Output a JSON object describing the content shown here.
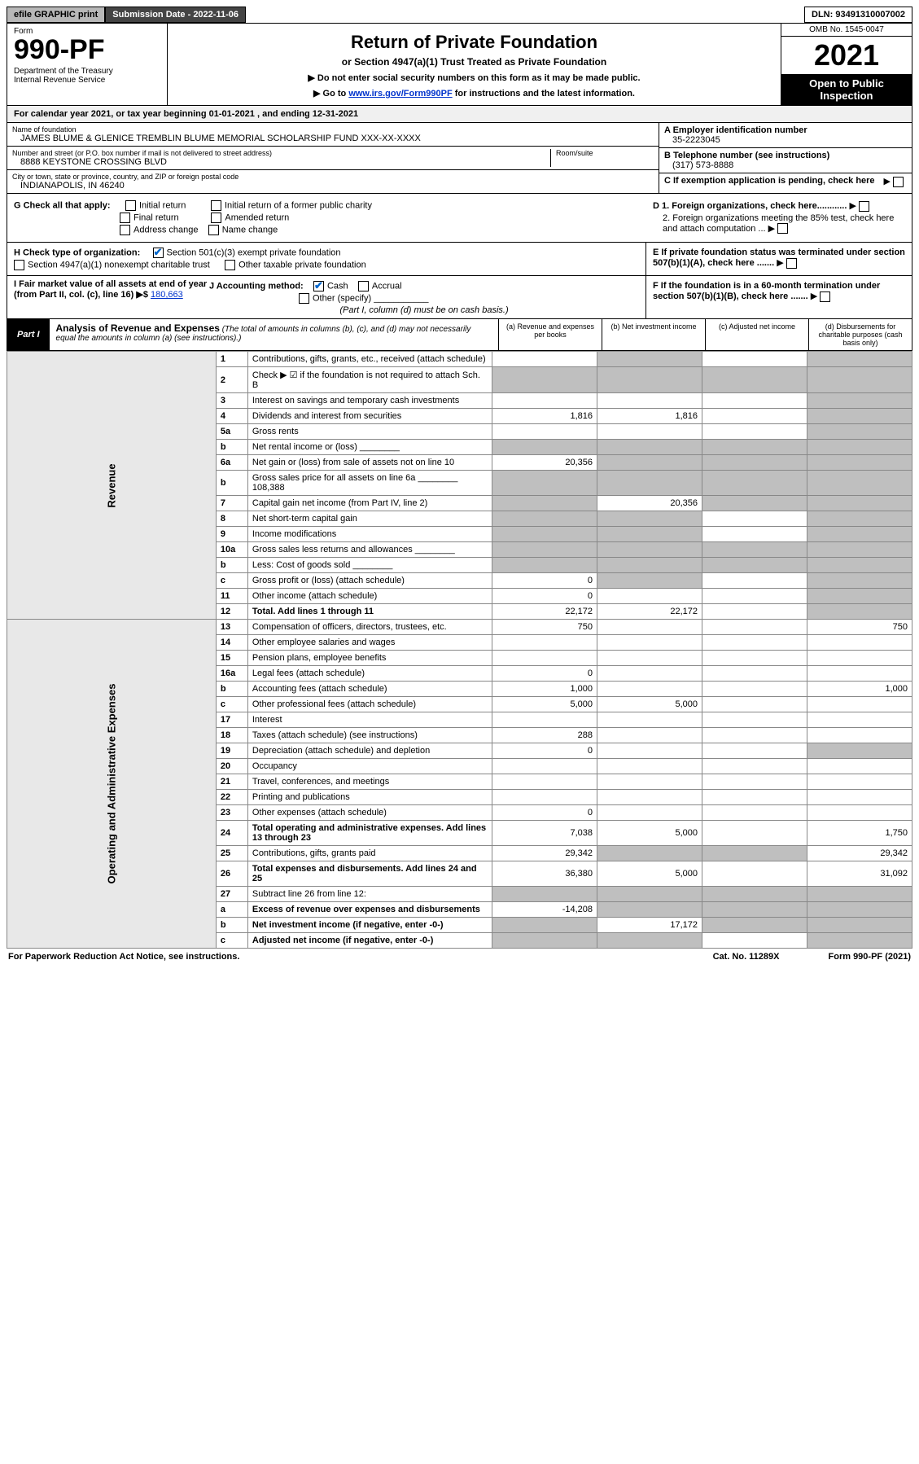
{
  "topbar": {
    "efile": "efile GRAPHIC print",
    "submission": "Submission Date - 2022-11-06",
    "dln": "DLN: 93491310007002"
  },
  "header": {
    "form_label": "Form",
    "form_num": "990-PF",
    "dept": "Department of the Treasury\nInternal Revenue Service",
    "title": "Return of Private Foundation",
    "subtitle": "or Section 4947(a)(1) Trust Treated as Private Foundation",
    "note1": "▶ Do not enter social security numbers on this form as it may be made public.",
    "note2_pre": "▶ Go to ",
    "note2_link": "www.irs.gov/Form990PF",
    "note2_post": " for instructions and the latest information.",
    "omb": "OMB No. 1545-0047",
    "year": "2021",
    "open": "Open to Public Inspection"
  },
  "cal_year": "For calendar year 2021, or tax year beginning 01-01-2021            , and ending 12-31-2021",
  "info": {
    "name_label": "Name of foundation",
    "name": "JAMES BLUME & GLENICE TREMBLIN BLUME MEMORIAL SCHOLARSHIP FUND XXX-XX-XXXX",
    "addr_label": "Number and street (or P.O. box number if mail is not delivered to street address)",
    "addr": "8888 KEYSTONE CROSSING BLVD",
    "room_label": "Room/suite",
    "city_label": "City or town, state or province, country, and ZIP or foreign postal code",
    "city": "INDIANAPOLIS, IN  46240",
    "a_label": "A Employer identification number",
    "a_val": "35-2223045",
    "b_label": "B Telephone number (see instructions)",
    "b_val": "(317) 573-8888",
    "c_label": "C If exemption application is pending, check here",
    "d1": "D 1. Foreign organizations, check here............",
    "d2": "2. Foreign organizations meeting the 85% test, check here and attach computation ...",
    "e": "E  If private foundation status was terminated under section 507(b)(1)(A), check here .......",
    "f": "F  If the foundation is in a 60-month termination under section 507(b)(1)(B), check here .......",
    "g_label": "G Check all that apply:",
    "g_initial": "Initial return",
    "g_initial_former": "Initial return of a former public charity",
    "g_final": "Final return",
    "g_amended": "Amended return",
    "g_addr": "Address change",
    "g_name": "Name change",
    "h_label": "H Check type of organization:",
    "h_501": "Section 501(c)(3) exempt private foundation",
    "h_4947": "Section 4947(a)(1) nonexempt charitable trust",
    "h_other": "Other taxable private foundation",
    "i_label": "I Fair market value of all assets at end of year (from Part II, col. (c), line 16) ▶$ ",
    "i_val": "180,663",
    "j_label": "J Accounting method:",
    "j_cash": "Cash",
    "j_accrual": "Accrual",
    "j_other": "Other (specify)",
    "j_note": "(Part I, column (d) must be on cash basis.)"
  },
  "part1": {
    "tag": "Part I",
    "title": "Analysis of Revenue and Expenses",
    "title_note": "(The total of amounts in columns (b), (c), and (d) may not necessarily equal the amounts in column (a) (see instructions).)",
    "col_a": "(a)   Revenue and expenses per books",
    "col_b": "(b)   Net investment income",
    "col_c": "(c)   Adjusted net income",
    "col_d": "(d)   Disbursements for charitable purposes (cash basis only)"
  },
  "sides": {
    "revenue": "Revenue",
    "expenses": "Operating and Administrative Expenses"
  },
  "rows": [
    {
      "n": "1",
      "d": "Contributions, gifts, grants, etc., received (attach schedule)",
      "a": "",
      "b_s": true,
      "d_s": true
    },
    {
      "n": "2",
      "d": "Check ▶ ☑ if the foundation is not required to attach Sch. B",
      "a_s": true,
      "b_s": true,
      "c_s": true,
      "d_s": true,
      "bold_check": true
    },
    {
      "n": "3",
      "d": "Interest on savings and temporary cash investments",
      "a": "",
      "b": "",
      "c": "",
      "d_s": true
    },
    {
      "n": "4",
      "d": "Dividends and interest from securities",
      "a": "1,816",
      "b": "1,816",
      "c": "",
      "d_s": true
    },
    {
      "n": "5a",
      "d": "Gross rents",
      "a": "",
      "b": "",
      "c": "",
      "d_s": true
    },
    {
      "n": "b",
      "d": "Net rental income or (loss)",
      "a_s": true,
      "b_s": true,
      "c_s": true,
      "d_s": true,
      "inline": true
    },
    {
      "n": "6a",
      "d": "Net gain or (loss) from sale of assets not on line 10",
      "a": "20,356",
      "b_s": true,
      "c_s": true,
      "d_s": true
    },
    {
      "n": "b",
      "d": "Gross sales price for all assets on line 6a",
      "inline_val": "108,388",
      "a_s": true,
      "b_s": true,
      "c_s": true,
      "d_s": true
    },
    {
      "n": "7",
      "d": "Capital gain net income (from Part IV, line 2)",
      "a_s": true,
      "b": "20,356",
      "c_s": true,
      "d_s": true
    },
    {
      "n": "8",
      "d": "Net short-term capital gain",
      "a_s": true,
      "b_s": true,
      "c": "",
      "d_s": true
    },
    {
      "n": "9",
      "d": "Income modifications",
      "a_s": true,
      "b_s": true,
      "c": "",
      "d_s": true
    },
    {
      "n": "10a",
      "d": "Gross sales less returns and allowances",
      "inline": true,
      "a_s": true,
      "b_s": true,
      "c_s": true,
      "d_s": true
    },
    {
      "n": "b",
      "d": "Less: Cost of goods sold",
      "inline": true,
      "a_s": true,
      "b_s": true,
      "c_s": true,
      "d_s": true
    },
    {
      "n": "c",
      "d": "Gross profit or (loss) (attach schedule)",
      "a": "0",
      "b_s": true,
      "c": "",
      "d_s": true
    },
    {
      "n": "11",
      "d": "Other income (attach schedule)",
      "a": "0",
      "b": "",
      "c": "",
      "d_s": true
    },
    {
      "n": "12",
      "d": "Total. Add lines 1 through 11",
      "a": "22,172",
      "b": "22,172",
      "c": "",
      "d_s": true,
      "bold": true
    }
  ],
  "exp_rows": [
    {
      "n": "13",
      "d": "Compensation of officers, directors, trustees, etc.",
      "a": "750",
      "b": "",
      "c": "",
      "dd": "750"
    },
    {
      "n": "14",
      "d": "Other employee salaries and wages",
      "a": "",
      "b": "",
      "c": "",
      "dd": ""
    },
    {
      "n": "15",
      "d": "Pension plans, employee benefits",
      "a": "",
      "b": "",
      "c": "",
      "dd": ""
    },
    {
      "n": "16a",
      "d": "Legal fees (attach schedule)",
      "a": "0",
      "b": "",
      "c": "",
      "dd": ""
    },
    {
      "n": "b",
      "d": "Accounting fees (attach schedule)",
      "a": "1,000",
      "b": "",
      "c": "",
      "dd": "1,000"
    },
    {
      "n": "c",
      "d": "Other professional fees (attach schedule)",
      "a": "5,000",
      "b": "5,000",
      "c": "",
      "dd": ""
    },
    {
      "n": "17",
      "d": "Interest",
      "a": "",
      "b": "",
      "c": "",
      "dd": ""
    },
    {
      "n": "18",
      "d": "Taxes (attach schedule) (see instructions)",
      "a": "288",
      "b": "",
      "c": "",
      "dd": ""
    },
    {
      "n": "19",
      "d": "Depreciation (attach schedule) and depletion",
      "a": "0",
      "b": "",
      "c": "",
      "d_s": true
    },
    {
      "n": "20",
      "d": "Occupancy",
      "a": "",
      "b": "",
      "c": "",
      "dd": ""
    },
    {
      "n": "21",
      "d": "Travel, conferences, and meetings",
      "a": "",
      "b": "",
      "c": "",
      "dd": ""
    },
    {
      "n": "22",
      "d": "Printing and publications",
      "a": "",
      "b": "",
      "c": "",
      "dd": ""
    },
    {
      "n": "23",
      "d": "Other expenses (attach schedule)",
      "a": "0",
      "b": "",
      "c": "",
      "dd": ""
    },
    {
      "n": "24",
      "d": "Total operating and administrative expenses. Add lines 13 through 23",
      "a": "7,038",
      "b": "5,000",
      "c": "",
      "dd": "1,750",
      "bold": true
    },
    {
      "n": "25",
      "d": "Contributions, gifts, grants paid",
      "a": "29,342",
      "b_s": true,
      "c_s": true,
      "dd": "29,342"
    },
    {
      "n": "26",
      "d": "Total expenses and disbursements. Add lines 24 and 25",
      "a": "36,380",
      "b": "5,000",
      "c": "",
      "dd": "31,092",
      "bold": true
    },
    {
      "n": "27",
      "d": "Subtract line 26 from line 12:",
      "a_s": true,
      "b_s": true,
      "c_s": true,
      "d_s": true
    },
    {
      "n": "a",
      "d": "Excess of revenue over expenses and disbursements",
      "a": "-14,208",
      "b_s": true,
      "c_s": true,
      "d_s": true,
      "bold": true
    },
    {
      "n": "b",
      "d": "Net investment income (if negative, enter -0-)",
      "a_s": true,
      "b": "17,172",
      "c_s": true,
      "d_s": true,
      "bold": true
    },
    {
      "n": "c",
      "d": "Adjusted net income (if negative, enter -0-)",
      "a_s": true,
      "b_s": true,
      "c": "",
      "d_s": true,
      "bold": true
    }
  ],
  "footer": {
    "left": "For Paperwork Reduction Act Notice, see instructions.",
    "mid": "Cat. No. 11289X",
    "right": "Form 990-PF (2021)"
  },
  "colors": {
    "shade": "#bfbfbf",
    "link": "#0033cc",
    "check": "#0066cc",
    "header_bg": "#e8e8e8"
  }
}
